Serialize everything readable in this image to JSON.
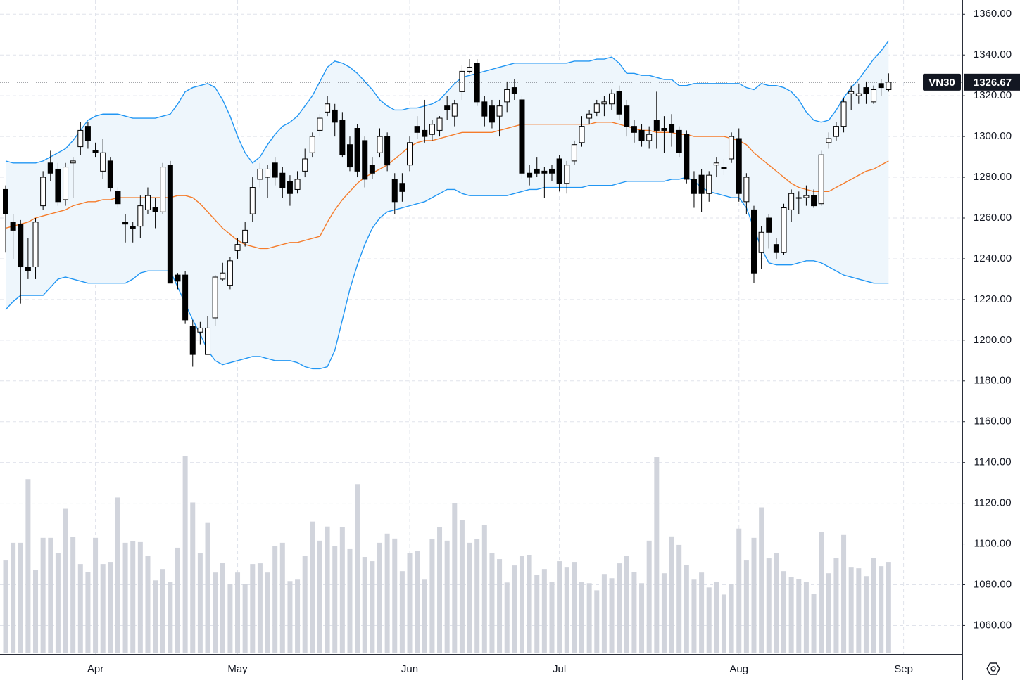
{
  "chart_data": {
    "type": "candlestick",
    "symbol": "VN30",
    "categories": [
      null,
      null,
      null,
      null,
      null,
      null,
      null,
      null,
      null,
      null,
      null,
      null,
      "Apr",
      null,
      null,
      null,
      null,
      null,
      null,
      null,
      null,
      null,
      null,
      null,
      null,
      null,
      null,
      null,
      null,
      null,
      null,
      "May",
      null,
      null,
      null,
      null,
      null,
      null,
      null,
      null,
      null,
      null,
      null,
      null,
      null,
      null,
      null,
      null,
      null,
      null,
      null,
      null,
      null,
      null,
      "Jun",
      null,
      null,
      null,
      null,
      null,
      null,
      null,
      null,
      null,
      null,
      null,
      null,
      null,
      null,
      null,
      null,
      null,
      null,
      null,
      "Jul",
      null,
      null,
      null,
      null,
      null,
      null,
      null,
      null,
      null,
      null,
      null,
      null,
      null,
      null,
      null,
      null,
      null,
      null,
      null,
      null,
      null,
      null,
      null,
      "Aug",
      null,
      null,
      null,
      null,
      null,
      null,
      null,
      null,
      null,
      null,
      null,
      null,
      null,
      null,
      null,
      null,
      null,
      null,
      null,
      null,
      null,
      "Sep"
    ],
    "open": [
      1274,
      1258,
      1257,
      1236,
      1236,
      1266,
      1287,
      1284,
      1269,
      1287,
      1295,
      1305,
      1293,
      1283,
      1288,
      1273,
      1258,
      1256,
      1256,
      1264,
      1265,
      1263,
      1286,
      1232,
      1232,
      1207,
      1204,
      1193,
      1211,
      1230,
      1227,
      1244,
      1248,
      1262,
      1279,
      1280,
      1287,
      1282,
      1278,
      1274,
      1283,
      1292,
      1303,
      1312,
      1313,
      1308,
      1296,
      1304,
      1298,
      1286,
      1292,
      1300,
      1279,
      1277,
      1286,
      1305,
      1303,
      1301,
      1303,
      1315,
      1310,
      1322,
      1332,
      1336,
      1317,
      1315,
      1310,
      1317,
      1324,
      1318,
      1282,
      1284,
      1283,
      1284,
      1289,
      1277,
      1288,
      1297,
      1309,
      1312,
      1316,
      1316,
      1322,
      1315,
      1305,
      1303,
      1298,
      1308,
      1304,
      1306,
      1303,
      1301,
      1279,
      1281,
      1272,
      1286,
      1285,
      1289,
      1299,
      1268,
      1264,
      1243,
      1260,
      1247,
      1243,
      1264,
      1270,
      1270,
      1271,
      1267,
      1297,
      1300,
      1305,
      1321,
      1320,
      1324,
      1317,
      1326,
      1323,
      null,
      null
    ],
    "high": [
      1276,
      1262,
      1259,
      1250,
      1260,
      1283,
      1293,
      1287,
      1287,
      1290,
      1307,
      1307,
      1297,
      1299,
      1290,
      1275,
      1262,
      1258,
      1271,
      1275,
      1270,
      1287,
      1288,
      1233,
      1234,
      1210,
      1209,
      1212,
      1232,
      1238,
      1241,
      1250,
      1258,
      1280,
      1287,
      1286,
      1290,
      1285,
      1281,
      1283,
      1294,
      1302,
      1311,
      1320,
      1316,
      1312,
      1300,
      1306,
      1300,
      1290,
      1304,
      1302,
      1282,
      1282,
      1300,
      1310,
      1318,
      1308,
      1310,
      1320,
      1318,
      1335,
      1338,
      1338,
      1320,
      1318,
      1318,
      1327,
      1328,
      1320,
      1286,
      1290,
      1285,
      1286,
      1291,
      1288,
      1298,
      1310,
      1313,
      1318,
      1320,
      1323,
      1325,
      1318,
      1308,
      1306,
      1305,
      1322,
      1310,
      1311,
      1305,
      1303,
      1283,
      1284,
      1283,
      1290,
      1289,
      1302,
      1304,
      1282,
      1266,
      1256,
      1262,
      1250,
      1267,
      1274,
      1273,
      1276,
      1274,
      1293,
      1302,
      1307,
      1319,
      1325,
      1326,
      1327,
      1325,
      1328,
      1331,
      null,
      null
    ],
    "low": [
      1243,
      1240,
      1218,
      1230,
      1230,
      1264,
      1278,
      1266,
      1266,
      1270,
      1291,
      1294,
      1290,
      1279,
      1273,
      1265,
      1248,
      1248,
      1250,
      1262,
      1255,
      1262,
      1228,
      1225,
      1208,
      1187,
      1198,
      1194,
      1207,
      1229,
      1225,
      1240,
      1246,
      1258,
      1275,
      1270,
      1276,
      1270,
      1266,
      1272,
      1280,
      1290,
      1300,
      1310,
      1300,
      1290,
      1283,
      1280,
      1275,
      1279,
      1290,
      1283,
      1262,
      1268,
      1283,
      1299,
      1297,
      1298,
      1300,
      1308,
      1305,
      1318,
      1331,
      1315,
      1305,
      1304,
      1300,
      1312,
      1318,
      1279,
      1276,
      1280,
      1270,
      1278,
      1273,
      1272,
      1286,
      1295,
      1306,
      1310,
      1310,
      1313,
      1308,
      1300,
      1297,
      1295,
      1294,
      1294,
      1292,
      1295,
      1290,
      1277,
      1265,
      1263,
      1268,
      1280,
      1281,
      1287,
      1268,
      1262,
      1228,
      1235,
      1245,
      1240,
      1242,
      1258,
      1262,
      1266,
      1265,
      1266,
      1294,
      1298,
      1302,
      1313,
      1316,
      1316,
      1316,
      1320,
      1322,
      null,
      null
    ],
    "close": [
      1262,
      1254,
      1236,
      1234,
      1258,
      1280,
      1282,
      1268,
      1285,
      1288,
      1303,
      1298,
      1292,
      1292,
      1275,
      1267,
      1257,
      1255,
      1266,
      1271,
      1263,
      1285,
      1228,
      1229,
      1210,
      1193,
      1206,
      1206,
      1231,
      1233,
      1239,
      1247,
      1254,
      1275,
      1284,
      1284,
      1280,
      1275,
      1272,
      1279,
      1289,
      1300,
      1309,
      1316,
      1307,
      1291,
      1285,
      1283,
      1279,
      1282,
      1300,
      1286,
      1268,
      1273,
      1297,
      1302,
      1300,
      1306,
      1309,
      1313,
      1316,
      1332,
      1334,
      1317,
      1310,
      1307,
      1315,
      1323,
      1321,
      1282,
      1280,
      1282,
      1282,
      1282,
      1277,
      1286,
      1296,
      1305,
      1311,
      1316,
      1317,
      1321,
      1311,
      1305,
      1302,
      1298,
      1301,
      1303,
      1303,
      1302,
      1292,
      1279,
      1272,
      1272,
      1281,
      1287,
      1284,
      1300,
      1272,
      1280,
      1233,
      1253,
      1253,
      1243,
      1265,
      1272,
      1270,
      1271,
      1266,
      1291,
      1299,
      1305,
      1317,
      1322,
      1321,
      1321,
      1323,
      1324,
      1326.67,
      null,
      null
    ],
    "volume": [
      130,
      155,
      155,
      245,
      117,
      162,
      162,
      140,
      203,
      163,
      125,
      114,
      162,
      125,
      128,
      219,
      155,
      157,
      156,
      137,
      102,
      118,
      100,
      148,
      278,
      212,
      140,
      183,
      113,
      127,
      97,
      113,
      97,
      125,
      126,
      113,
      150,
      155,
      101,
      103,
      137,
      185,
      158,
      178,
      150,
      177,
      147,
      238,
      135,
      129,
      155,
      168,
      161,
      115,
      140,
      143,
      103,
      160,
      177,
      158,
      211,
      187,
      155,
      160,
      180,
      140,
      132,
      99,
      123,
      136,
      138,
      110,
      118,
      100,
      129,
      120,
      128,
      100,
      98,
      88,
      111,
      105,
      126,
      137,
      114,
      98,
      158,
      276,
      112,
      164,
      152,
      124,
      103,
      113,
      92,
      100,
      82,
      97,
      175,
      130,
      162,
      205,
      133,
      140,
      115,
      107,
      104,
      100,
      83,
      170,
      112,
      134,
      166,
      120,
      119,
      108,
      134,
      122,
      128,
      null,
      null
    ],
    "ma": [
      1255,
      1256,
      1257,
      1258,
      1260,
      1261,
      1262,
      1263,
      1264,
      1266,
      1267,
      1268,
      1268,
      1269,
      1269,
      1270,
      1270,
      1270,
      1270,
      1270,
      1270,
      1270,
      1270,
      1271,
      1271,
      1270,
      1267,
      1263,
      1259,
      1255,
      1252,
      1249,
      1247,
      1246,
      1245,
      1245,
      1246,
      1247,
      1248,
      1248,
      1249,
      1250,
      1251,
      1258,
      1264,
      1269,
      1273,
      1277,
      1280,
      1282,
      1284,
      1286,
      1289,
      1292,
      1295,
      1297,
      1298,
      1298,
      1299,
      1300,
      1301,
      1302,
      1302,
      1302,
      1302,
      1302,
      1303,
      1304,
      1305,
      1306,
      1306,
      1306,
      1306,
      1306,
      1306,
      1306,
      1306,
      1306,
      1306,
      1307,
      1307,
      1307,
      1306,
      1305,
      1304,
      1303,
      1303,
      1302,
      1302,
      1302,
      1301,
      1301,
      1300,
      1300,
      1300,
      1300,
      1300,
      1299,
      1298,
      1296,
      1292,
      1289,
      1286,
      1283,
      1280,
      1277,
      1275,
      1274,
      1273,
      1273,
      1273,
      1275,
      1277,
      1279,
      1281,
      1283,
      1284,
      1286,
      1288,
      null,
      null
    ],
    "upper": [
      1288,
      1287,
      1287,
      1287,
      1287,
      1288,
      1290,
      1292,
      1294,
      1298,
      1303,
      1308,
      1310,
      1311,
      1311,
      1311,
      1310,
      1309,
      1309,
      1309,
      1309,
      1310,
      1311,
      1316,
      1322,
      1324,
      1325,
      1326,
      1324,
      1318,
      1310,
      1300,
      1292,
      1287,
      1290,
      1296,
      1301,
      1305,
      1307,
      1310,
      1315,
      1320,
      1327,
      1334,
      1337,
      1336,
      1334,
      1331,
      1327,
      1323,
      1318,
      1315,
      1313,
      1313,
      1314,
      1314,
      1315,
      1316,
      1318,
      1322,
      1326,
      1329,
      1330,
      1331,
      1332,
      1333,
      1334,
      1335,
      1336,
      1336,
      1336,
      1336,
      1336,
      1336,
      1336,
      1336,
      1337,
      1337,
      1337,
      1338,
      1338,
      1339,
      1336,
      1331,
      1331,
      1330,
      1330,
      1329,
      1328,
      1328,
      1325,
      1325,
      1326,
      1326,
      1326,
      1326,
      1326,
      1326,
      1326,
      1324,
      1323,
      1326,
      1325,
      1325,
      1324,
      1322,
      1318,
      1312,
      1308,
      1307,
      1308,
      1313,
      1319,
      1324,
      1328,
      1333,
      1338,
      1342,
      1347,
      null,
      null
    ],
    "lower": [
      1215,
      1219,
      1222,
      1222,
      1222,
      1222,
      1226,
      1230,
      1231,
      1230,
      1229,
      1228,
      1228,
      1228,
      1228,
      1228,
      1228,
      1230,
      1233,
      1234,
      1234,
      1234,
      1234,
      1226,
      1218,
      1210,
      1203,
      1195,
      1190,
      1188,
      1189,
      1190,
      1191,
      1192,
      1192,
      1191,
      1190,
      1190,
      1190,
      1189,
      1187,
      1186,
      1186,
      1187,
      1195,
      1210,
      1225,
      1237,
      1247,
      1255,
      1260,
      1263,
      1264,
      1265,
      1266,
      1267,
      1268,
      1270,
      1272,
      1274,
      1274,
      1272,
      1271,
      1271,
      1271,
      1271,
      1271,
      1271,
      1272,
      1273,
      1274,
      1274,
      1275,
      1275,
      1275,
      1275,
      1275,
      1275,
      1276,
      1276,
      1276,
      1276,
      1277,
      1278,
      1278,
      1278,
      1278,
      1278,
      1278,
      1279,
      1279,
      1280,
      1278,
      1275,
      1273,
      1272,
      1271,
      1270,
      1270,
      1265,
      1255,
      1245,
      1238,
      1237,
      1237,
      1237,
      1238,
      1239,
      1239,
      1238,
      1236,
      1234,
      1232,
      1231,
      1230,
      1229,
      1228,
      1228,
      1228,
      null,
      null
    ],
    "ylim": [
      1046,
      1367
    ],
    "yticks": [
      {
        "value": 1360,
        "label": "1360.00"
      },
      {
        "value": 1340,
        "label": "1340.00"
      },
      {
        "value": 1320,
        "label": "1320.00"
      },
      {
        "value": 1300,
        "label": "1300.00"
      },
      {
        "value": 1280,
        "label": "1280.00"
      },
      {
        "value": 1260,
        "label": "1260.00"
      },
      {
        "value": 1240,
        "label": "1240.00"
      },
      {
        "value": 1220,
        "label": "1220.00"
      },
      {
        "value": 1200,
        "label": "1200.00"
      },
      {
        "value": 1180,
        "label": "1180.00"
      },
      {
        "value": 1160,
        "label": "1160.00"
      },
      {
        "value": 1140,
        "label": "1140.00"
      },
      {
        "value": 1120,
        "label": "1120.00"
      },
      {
        "value": 1100,
        "label": "1100.00"
      },
      {
        "value": 1080,
        "label": "1080.00"
      },
      {
        "value": 1060,
        "label": "1060.00"
      }
    ],
    "grid": true,
    "up_color": "#ffffff",
    "down_color": "#000000",
    "volume_color": "#d1d4dc",
    "ma_color": "#f57c2b",
    "band_color": "#2196f3",
    "band_fill": "#eef6fc"
  }
}
